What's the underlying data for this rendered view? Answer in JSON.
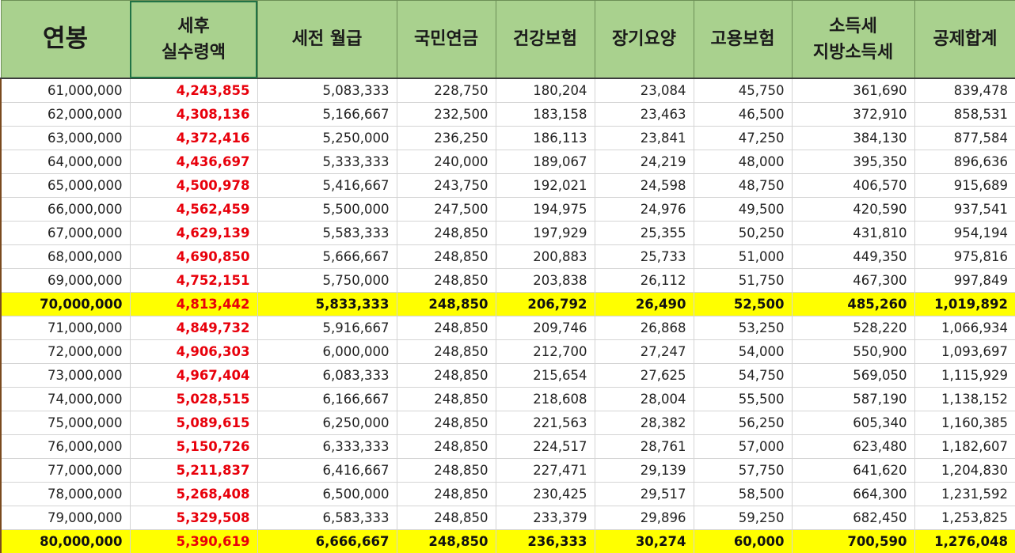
{
  "headers": [
    "연봉",
    "세후\n실수령액",
    "세전 월급",
    "국민연금",
    "건강보험",
    "장기요양",
    "고용보험",
    "소득세\n지방소득세",
    "공제합계"
  ],
  "colors": {
    "header_bg": "#a9d18e",
    "highlight_bg": "#ffff00",
    "net_text": "#e8000b"
  },
  "rows": [
    {
      "highlight": false,
      "cells": [
        "61,000,000",
        "4,243,855",
        "5,083,333",
        "228,750",
        "180,204",
        "23,084",
        "45,750",
        "361,690",
        "839,478"
      ]
    },
    {
      "highlight": false,
      "cells": [
        "62,000,000",
        "4,308,136",
        "5,166,667",
        "232,500",
        "183,158",
        "23,463",
        "46,500",
        "372,910",
        "858,531"
      ]
    },
    {
      "highlight": false,
      "cells": [
        "63,000,000",
        "4,372,416",
        "5,250,000",
        "236,250",
        "186,113",
        "23,841",
        "47,250",
        "384,130",
        "877,584"
      ]
    },
    {
      "highlight": false,
      "cells": [
        "64,000,000",
        "4,436,697",
        "5,333,333",
        "240,000",
        "189,067",
        "24,219",
        "48,000",
        "395,350",
        "896,636"
      ]
    },
    {
      "highlight": false,
      "cells": [
        "65,000,000",
        "4,500,978",
        "5,416,667",
        "243,750",
        "192,021",
        "24,598",
        "48,750",
        "406,570",
        "915,689"
      ]
    },
    {
      "highlight": false,
      "cells": [
        "66,000,000",
        "4,562,459",
        "5,500,000",
        "247,500",
        "194,975",
        "24,976",
        "49,500",
        "420,590",
        "937,541"
      ]
    },
    {
      "highlight": false,
      "cells": [
        "67,000,000",
        "4,629,139",
        "5,583,333",
        "248,850",
        "197,929",
        "25,355",
        "50,250",
        "431,810",
        "954,194"
      ]
    },
    {
      "highlight": false,
      "cells": [
        "68,000,000",
        "4,690,850",
        "5,666,667",
        "248,850",
        "200,883",
        "25,733",
        "51,000",
        "449,350",
        "975,816"
      ]
    },
    {
      "highlight": false,
      "cells": [
        "69,000,000",
        "4,752,151",
        "5,750,000",
        "248,850",
        "203,838",
        "26,112",
        "51,750",
        "467,300",
        "997,849"
      ]
    },
    {
      "highlight": true,
      "cells": [
        "70,000,000",
        "4,813,442",
        "5,833,333",
        "248,850",
        "206,792",
        "26,490",
        "52,500",
        "485,260",
        "1,019,892"
      ]
    },
    {
      "highlight": false,
      "cells": [
        "71,000,000",
        "4,849,732",
        "5,916,667",
        "248,850",
        "209,746",
        "26,868",
        "53,250",
        "528,220",
        "1,066,934"
      ]
    },
    {
      "highlight": false,
      "cells": [
        "72,000,000",
        "4,906,303",
        "6,000,000",
        "248,850",
        "212,700",
        "27,247",
        "54,000",
        "550,900",
        "1,093,697"
      ]
    },
    {
      "highlight": false,
      "cells": [
        "73,000,000",
        "4,967,404",
        "6,083,333",
        "248,850",
        "215,654",
        "27,625",
        "54,750",
        "569,050",
        "1,115,929"
      ]
    },
    {
      "highlight": false,
      "cells": [
        "74,000,000",
        "5,028,515",
        "6,166,667",
        "248,850",
        "218,608",
        "28,004",
        "55,500",
        "587,190",
        "1,138,152"
      ]
    },
    {
      "highlight": false,
      "cells": [
        "75,000,000",
        "5,089,615",
        "6,250,000",
        "248,850",
        "221,563",
        "28,382",
        "56,250",
        "605,340",
        "1,160,385"
      ]
    },
    {
      "highlight": false,
      "cells": [
        "76,000,000",
        "5,150,726",
        "6,333,333",
        "248,850",
        "224,517",
        "28,761",
        "57,000",
        "623,480",
        "1,182,607"
      ]
    },
    {
      "highlight": false,
      "cells": [
        "77,000,000",
        "5,211,837",
        "6,416,667",
        "248,850",
        "227,471",
        "29,139",
        "57,750",
        "641,620",
        "1,204,830"
      ]
    },
    {
      "highlight": false,
      "cells": [
        "78,000,000",
        "5,268,408",
        "6,500,000",
        "248,850",
        "230,425",
        "29,517",
        "58,500",
        "664,300",
        "1,231,592"
      ]
    },
    {
      "highlight": false,
      "cells": [
        "79,000,000",
        "5,329,508",
        "6,583,333",
        "248,850",
        "233,379",
        "29,896",
        "59,250",
        "682,450",
        "1,253,825"
      ]
    },
    {
      "highlight": true,
      "cells": [
        "80,000,000",
        "5,390,619",
        "6,666,667",
        "248,850",
        "236,333",
        "30,274",
        "60,000",
        "700,590",
        "1,276,048"
      ]
    }
  ]
}
